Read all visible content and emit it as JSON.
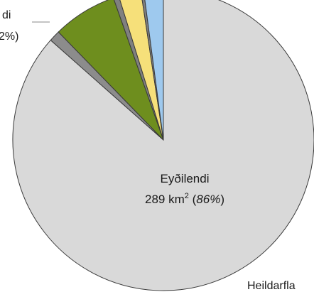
{
  "chart_data": {
    "type": "pie",
    "start_angle": "top, clockwise (largest slice begins at 12 o'clock)",
    "slices": [
      {
        "label": "Eyðilendi",
        "value": 289,
        "percent": 86,
        "unit": "km²",
        "color": "#d9d9d9"
      },
      {
        "label": "",
        "value": 4,
        "percent": 1.2,
        "unit": "km²",
        "color": "#8c8c8c"
      },
      {
        "label": "",
        "value": 23,
        "percent": 6.8,
        "unit": "km²",
        "color": "#6e8e1e"
      },
      {
        "label": "",
        "value": 2,
        "percent": 0.6,
        "unit": "km²",
        "color": "#808080"
      },
      {
        "label": "",
        "value": 8,
        "percent": 2.4,
        "unit": "km²",
        "color": "#f6e07a"
      },
      {
        "label": "",
        "value": 1,
        "percent": 0.3,
        "unit": "km²",
        "color": "#808080"
      },
      {
        "label": "",
        "value": 7,
        "percent": 2.1,
        "unit": "km²",
        "color": "#9ec9ee"
      }
    ],
    "labels": {
      "main_name": "Eyðilendi",
      "main_value": "289 km",
      "main_sup": "2",
      "main_pct_open": " (",
      "main_pct": "86%",
      "main_pct_close": ")",
      "partial_name": "di",
      "partial_pct": "2%)",
      "footer": "Heildarfla"
    },
    "colors": {
      "outline": "#3a3a3a",
      "leader": "#888888"
    }
  }
}
